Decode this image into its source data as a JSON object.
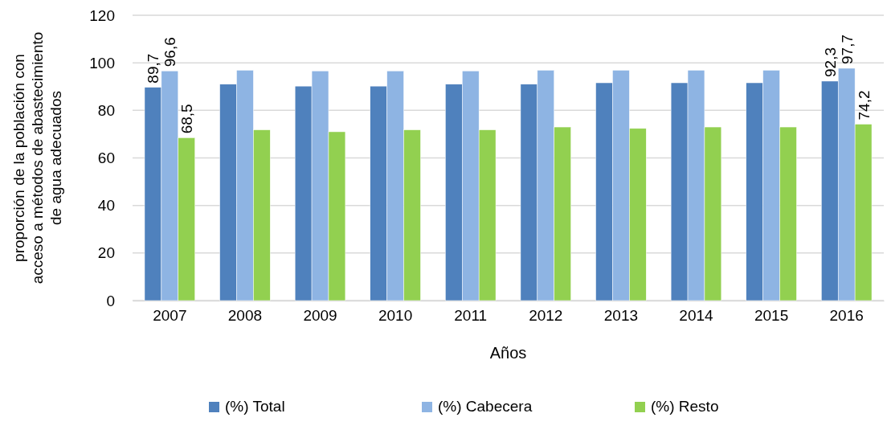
{
  "chart_data": {
    "type": "bar",
    "xlabel": "Años",
    "ylabel": "proporción de la población con\nacceso a métodos de abastecimiento\nde agua adecuados",
    "categories": [
      "2007",
      "2008",
      "2009",
      "2010",
      "2011",
      "2012",
      "2013",
      "2014",
      "2015",
      "2016"
    ],
    "series": [
      {
        "name": "(%) Total",
        "color": "#4f81bd",
        "values": [
          89.7,
          91.0,
          90.2,
          90.2,
          91.0,
          91.0,
          91.6,
          91.6,
          91.6,
          92.3
        ],
        "value_labels": [
          "89,7",
          null,
          null,
          null,
          null,
          null,
          null,
          null,
          null,
          "92,3"
        ]
      },
      {
        "name": "(%) Cabecera",
        "color": "#8eb4e3",
        "values": [
          96.6,
          96.9,
          96.6,
          96.6,
          96.6,
          96.9,
          96.9,
          96.9,
          96.9,
          97.7
        ],
        "value_labels": [
          "96,6",
          null,
          null,
          null,
          null,
          null,
          null,
          null,
          null,
          "97,7"
        ]
      },
      {
        "name": "(%) Resto",
        "color": "#92d050",
        "values": [
          68.5,
          71.8,
          71.0,
          71.8,
          71.8,
          73.0,
          72.4,
          73.0,
          73.0,
          74.2
        ],
        "value_labels": [
          "68,5",
          null,
          null,
          null,
          null,
          null,
          null,
          null,
          null,
          "74,2"
        ]
      }
    ],
    "ylim": [
      0,
      120
    ],
    "yticks": [
      0,
      20,
      40,
      60,
      80,
      100,
      120
    ],
    "grid": "y",
    "legend": "bottom"
  }
}
